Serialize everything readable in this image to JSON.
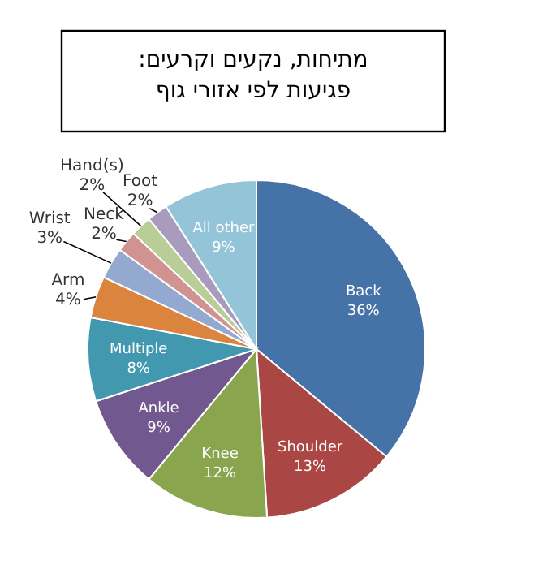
{
  "chart_data": {
    "type": "pie",
    "title": "מתיחות, נקעים וקרעים:\nפגיעות לפי אזורי גוף",
    "categories": [
      "Back",
      "Shoulder",
      "Knee",
      "Ankle",
      "Multiple",
      "Arm",
      "Wrist",
      "Neck",
      "Hand(s)",
      "Foot",
      "All other"
    ],
    "values": [
      36,
      13,
      12,
      9,
      8,
      4,
      3,
      2,
      2,
      2,
      9
    ],
    "value_labels": [
      "36%",
      "13%",
      "12%",
      "9%",
      "8%",
      "4%",
      "3%",
      "2%",
      "2%",
      "2%",
      "9%"
    ],
    "colors": [
      "#4572a7",
      "#aa4643",
      "#89a54e",
      "#71588f",
      "#4198af",
      "#db843d",
      "#93a9cf",
      "#d19392",
      "#b9cd96",
      "#a99bbd",
      "#93c4d8"
    ]
  }
}
